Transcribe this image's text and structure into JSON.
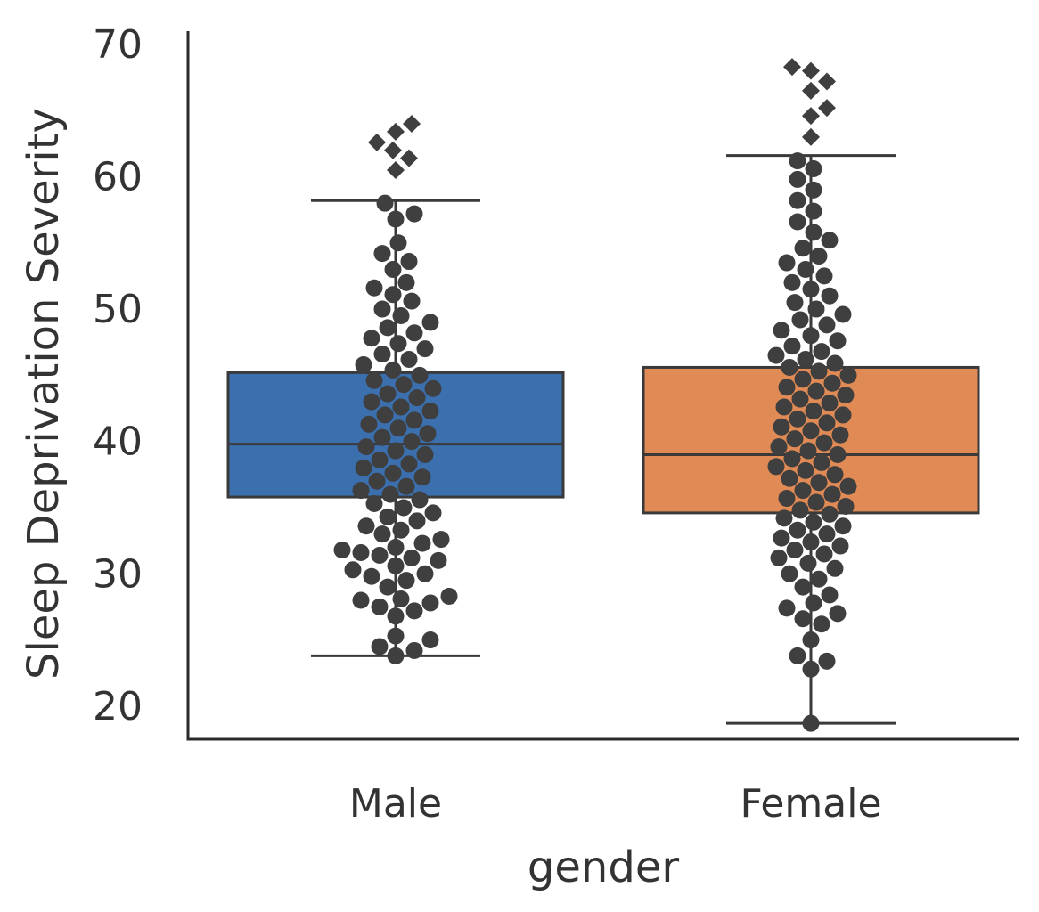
{
  "chart_data": {
    "type": "box+swarm",
    "title": "",
    "xlabel": "gender",
    "ylabel": "Sleep Deprivation Severity",
    "categories": [
      "Male",
      "Female"
    ],
    "ylim": [
      17.5,
      71
    ],
    "yticks": [
      20,
      30,
      40,
      50,
      60,
      70
    ],
    "ytick_labels": [
      "20",
      "30",
      "40",
      "50",
      "60",
      "70"
    ],
    "grid": false,
    "colors": {
      "Male": "#3b6fae",
      "Female": "#e08a55",
      "points": "#3f3f3f",
      "lines": "#3a3a3a"
    },
    "series": [
      {
        "name": "Male",
        "box": {
          "whisker_low": 23.8,
          "q1": 35.8,
          "median": 39.8,
          "q3": 45.2,
          "whisker_high": 58.2
        },
        "outliers": [
          60.5,
          61.4,
          62.0,
          62.6,
          63.4,
          64.0
        ],
        "points": [
          23.8,
          24.2,
          24.5,
          25.0,
          25.3,
          26.8,
          27.2,
          27.5,
          27.8,
          28.0,
          28.1,
          28.3,
          29.0,
          29.5,
          29.8,
          30.0,
          30.3,
          30.6,
          31.0,
          31.2,
          31.4,
          31.6,
          31.8,
          32.0,
          32.3,
          32.6,
          33.0,
          33.3,
          33.6,
          34.0,
          34.3,
          34.6,
          35.0,
          35.3,
          35.6,
          36.0,
          36.3,
          36.6,
          37.0,
          37.3,
          37.6,
          38.0,
          38.3,
          38.6,
          39.0,
          39.3,
          39.6,
          40.0,
          40.3,
          40.6,
          41.0,
          41.3,
          41.6,
          42.0,
          42.3,
          42.6,
          43.0,
          43.3,
          43.6,
          44.0,
          44.3,
          44.6,
          45.0,
          45.4,
          45.8,
          46.2,
          46.6,
          47.0,
          47.4,
          47.8,
          48.2,
          48.6,
          49.0,
          49.5,
          50.0,
          50.6,
          51.1,
          51.6,
          52.0,
          53.0,
          53.6,
          54.2,
          55.0,
          56.8,
          57.2,
          58.0
        ]
      },
      {
        "name": "Female",
        "box": {
          "whisker_low": 18.7,
          "q1": 34.6,
          "median": 39.0,
          "q3": 45.6,
          "whisker_high": 61.6
        },
        "outliers": [
          63.0,
          64.6,
          65.2,
          66.5,
          67.2,
          68.0,
          68.3
        ],
        "points": [
          18.7,
          22.8,
          23.4,
          23.8,
          25.0,
          26.2,
          26.6,
          27.0,
          27.4,
          27.8,
          28.4,
          29.0,
          29.6,
          30.0,
          30.4,
          30.8,
          31.2,
          31.5,
          31.8,
          32.1,
          32.4,
          32.7,
          33.0,
          33.3,
          33.6,
          33.9,
          34.2,
          34.5,
          34.8,
          35.1,
          35.4,
          35.7,
          36.0,
          36.3,
          36.6,
          36.9,
          37.2,
          37.5,
          37.8,
          38.1,
          38.4,
          38.7,
          39.0,
          39.3,
          39.6,
          39.9,
          40.2,
          40.5,
          40.8,
          41.1,
          41.4,
          41.7,
          42.0,
          42.3,
          42.6,
          42.9,
          43.2,
          43.5,
          43.8,
          44.1,
          44.4,
          44.7,
          45.0,
          45.3,
          45.6,
          45.9,
          46.2,
          46.5,
          46.8,
          47.2,
          47.6,
          48.0,
          48.4,
          48.8,
          49.2,
          49.6,
          50.0,
          50.5,
          51.0,
          51.5,
          52.0,
          52.5,
          53.0,
          53.5,
          54.0,
          54.6,
          55.2,
          55.8,
          56.6,
          57.4,
          58.2,
          59.0,
          59.8,
          60.6,
          61.2
        ]
      }
    ]
  }
}
